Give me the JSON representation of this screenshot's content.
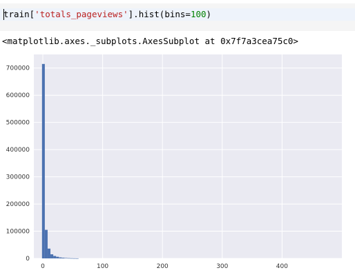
{
  "notebook": {
    "input_code": {
      "obj": "train",
      "str": "'totals_pageviews'",
      "method": "].hist(bins=",
      "num": "100",
      "close": ")"
    },
    "output_text": "<matplotlib.axes._subplots.AxesSubplot at 0x7f7a3cea75c0>"
  },
  "colors": {
    "bar": "#4c72b0",
    "plot_bg": "#eaeaf2",
    "grid": "#ffffff",
    "string_token": "#ba2121",
    "number_token": "#008000"
  },
  "chart_data": {
    "type": "bar",
    "title": "",
    "xlabel": "",
    "ylabel": "",
    "xlim": [
      -15,
      500
    ],
    "ylim": [
      0,
      750000
    ],
    "xticks": [
      0,
      100,
      200,
      300,
      400
    ],
    "yticks": [
      0,
      100000,
      200000,
      300000,
      400000,
      500000,
      600000,
      700000
    ],
    "bin_width": 4.69,
    "grid": true,
    "bins": [
      {
        "x": 1,
        "y": 715000
      },
      {
        "x": 5.7,
        "y": 105000
      },
      {
        "x": 10.4,
        "y": 36000
      },
      {
        "x": 15.1,
        "y": 15000
      },
      {
        "x": 19.8,
        "y": 9000
      },
      {
        "x": 24.5,
        "y": 6000
      },
      {
        "x": 29.2,
        "y": 3500
      },
      {
        "x": 33.9,
        "y": 2500
      },
      {
        "x": 38.6,
        "y": 1500
      },
      {
        "x": 43.3,
        "y": 1000
      },
      {
        "x": 48.0,
        "y": 600
      },
      {
        "x": 52.7,
        "y": 400
      },
      {
        "x": 57.4,
        "y": 250
      }
    ]
  }
}
